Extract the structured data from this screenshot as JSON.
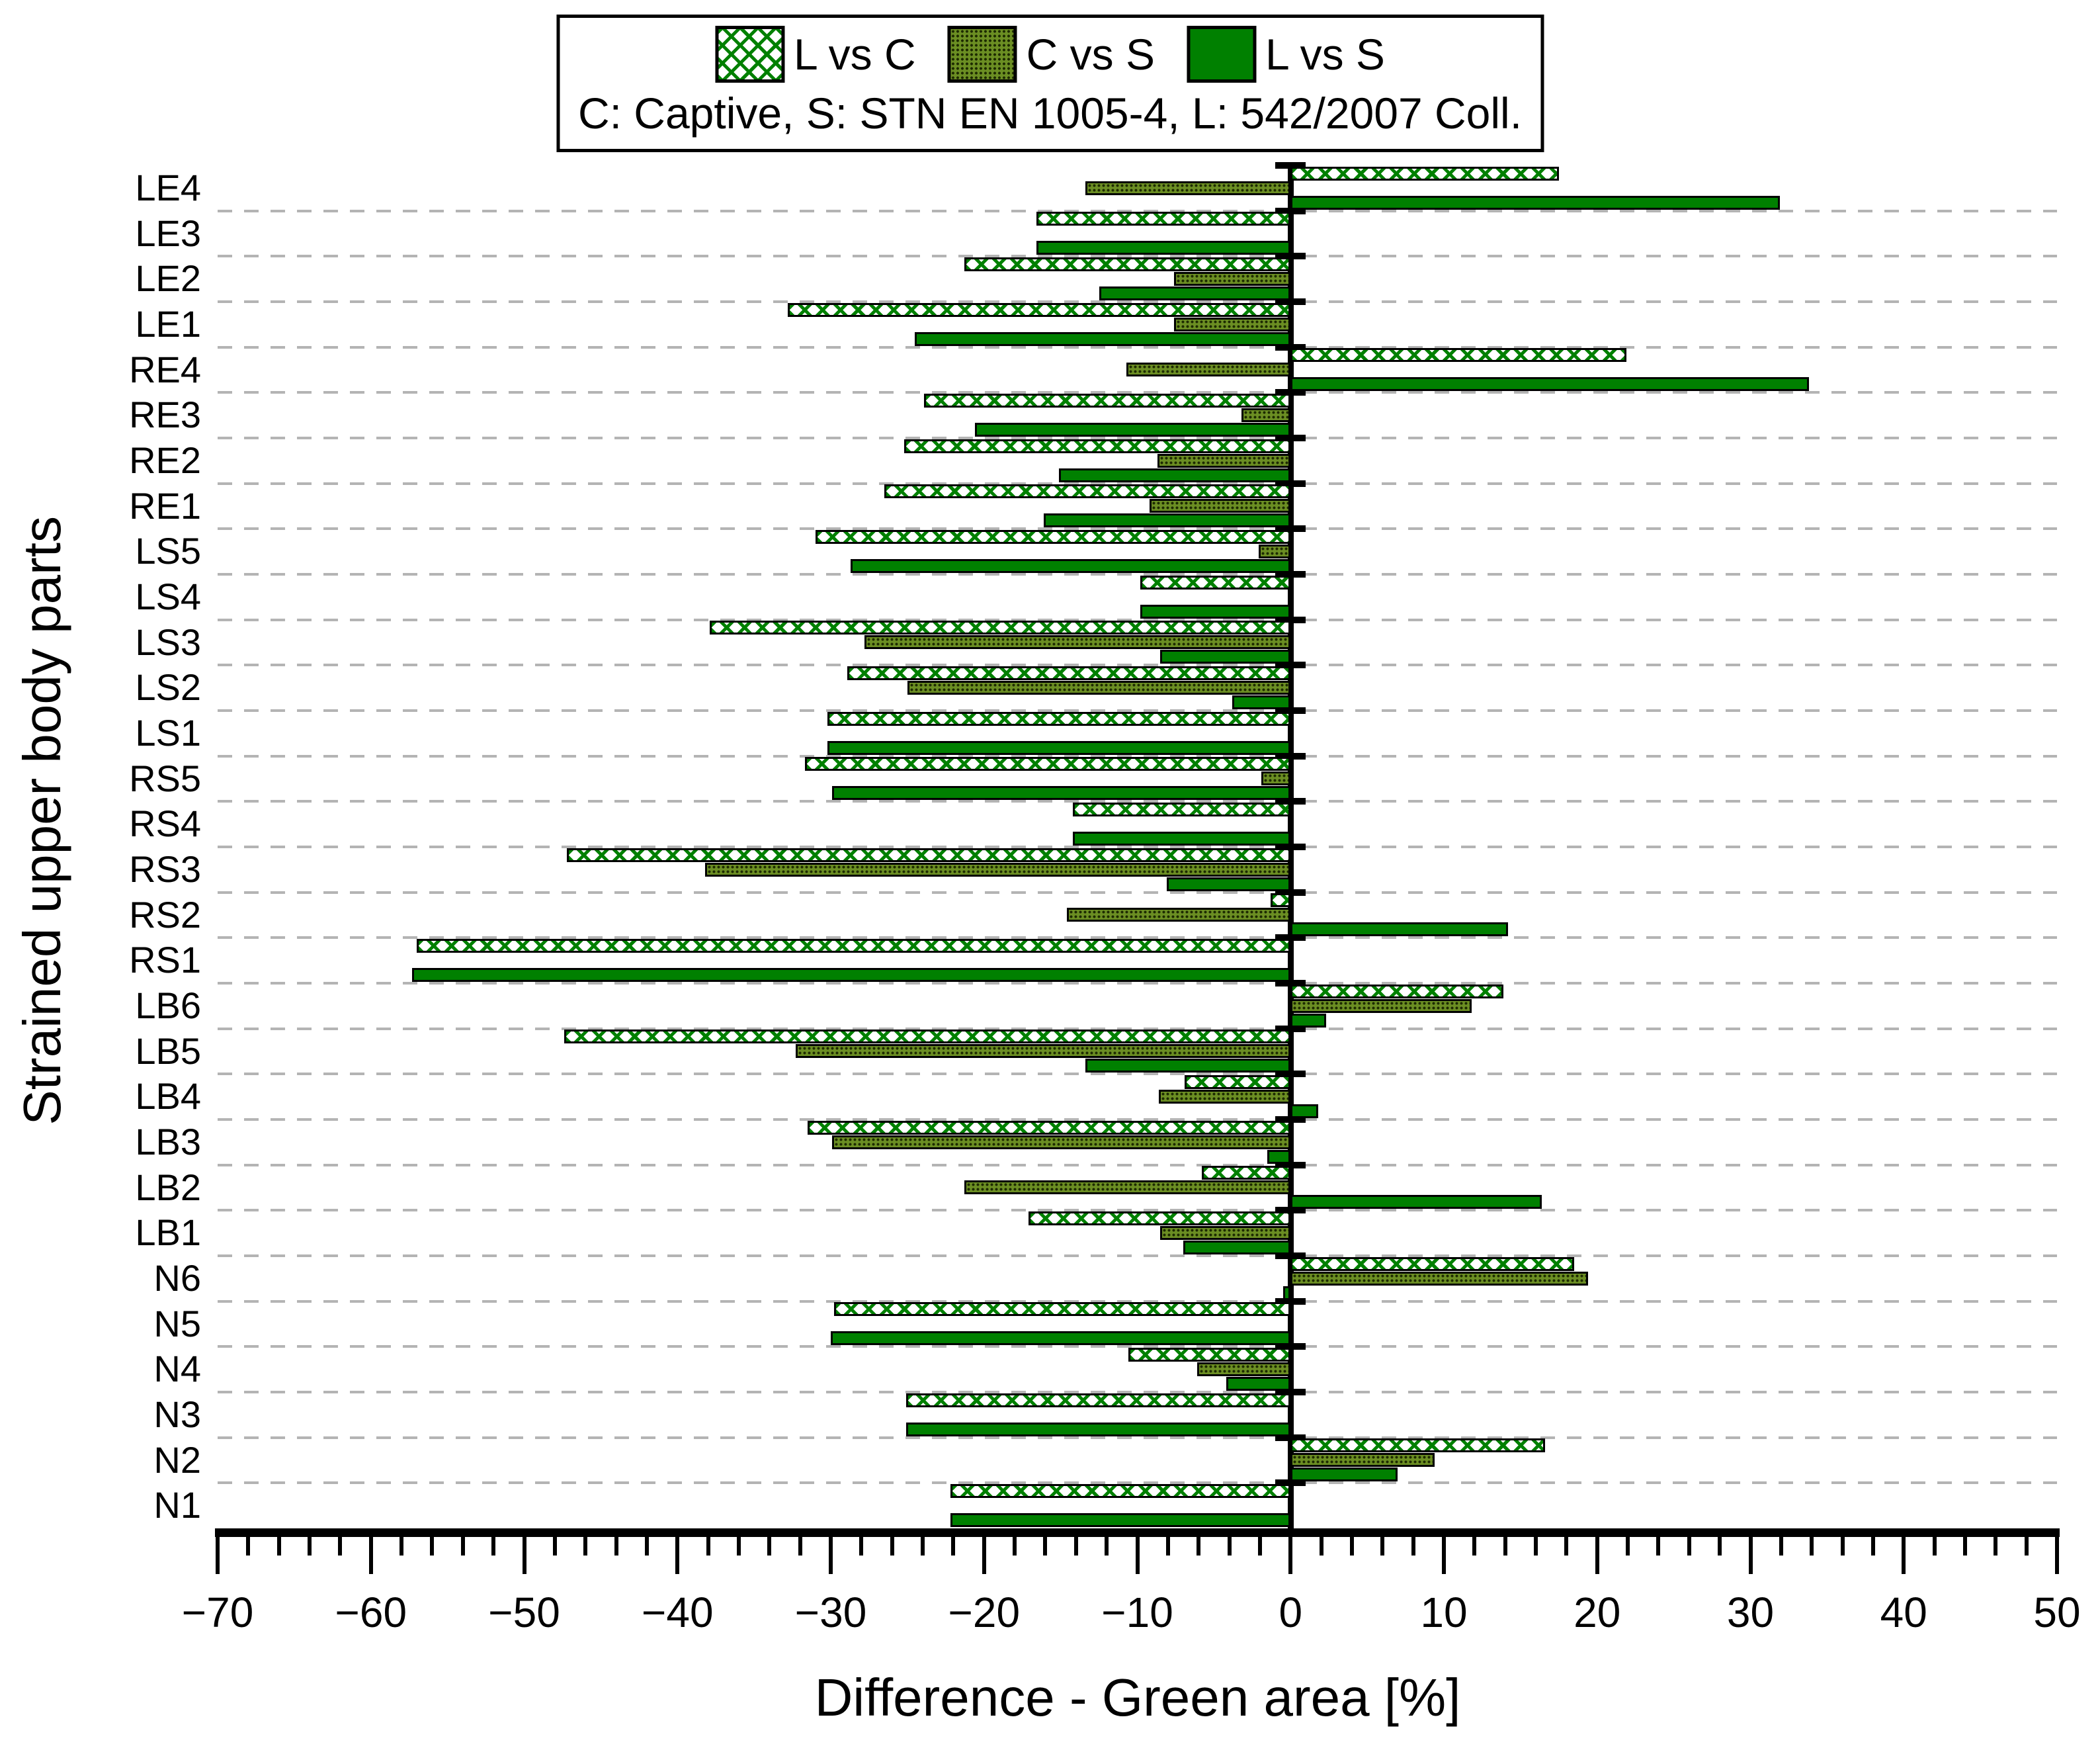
{
  "legend": {
    "series_labels": [
      "L vs C",
      "C vs S",
      "L vs S"
    ],
    "note": "C: Captive, S: STN EN 1005-4, L: 542/2007 Coll."
  },
  "axes": {
    "x_title": "Difference - Green area [%]",
    "y_title": "Strained upper body parts",
    "x_tick_labels": [
      "−70",
      "−60",
      "−50",
      "−40",
      "−30",
      "−20",
      "−10",
      "0",
      "10",
      "20",
      "30",
      "40",
      "50"
    ]
  },
  "chart_data": {
    "type": "bar",
    "orientation": "horizontal",
    "title": "",
    "xlabel": "Difference - Green area [%]",
    "ylabel": "Strained upper body parts",
    "xlim": [
      -70,
      50
    ],
    "x_major_step": 10,
    "x_minor_step": 2,
    "grid": "dashed gray horizontal lines at category boundaries",
    "legend_position": "top-center",
    "categories": [
      "LE4",
      "LE3",
      "LE2",
      "LE1",
      "RE4",
      "RE3",
      "RE2",
      "RE1",
      "LS5",
      "LS4",
      "LS3",
      "LS2",
      "LS1",
      "RS5",
      "RS4",
      "RS3",
      "RS2",
      "RS1",
      "LB6",
      "LB5",
      "LB4",
      "LB3",
      "LB2",
      "LB1",
      "N6",
      "N5",
      "N4",
      "N3",
      "N2",
      "N1"
    ],
    "series": [
      {
        "name": "L vs C",
        "style": "crosshatch",
        "values": [
          17.5,
          -16.6,
          -21.3,
          -32.8,
          21.9,
          -23.9,
          -25.2,
          -26.5,
          -31.0,
          -9.8,
          -37.9,
          -28.9,
          -30.2,
          -31.7,
          -14.2,
          -47.2,
          -1.3,
          -57.0,
          13.9,
          -47.4,
          -6.9,
          -31.5,
          -5.8,
          -17.1,
          18.5,
          -29.8,
          -10.6,
          -25.1,
          16.6,
          -22.2
        ]
      },
      {
        "name": "C vs S",
        "style": "dotted-olive",
        "values": [
          -13.4,
          0,
          -7.6,
          -7.6,
          -10.7,
          -3.2,
          -8.7,
          -9.2,
          -2.1,
          0,
          -27.8,
          -25.0,
          0,
          -1.9,
          0,
          -38.2,
          -14.6,
          0,
          11.8,
          -32.3,
          -8.6,
          -29.9,
          -21.3,
          -8.5,
          19.4,
          0,
          -6.1,
          0,
          9.4,
          0
        ]
      },
      {
        "name": "L vs S",
        "style": "solid-green",
        "values": [
          31.9,
          -16.6,
          -12.5,
          -24.5,
          33.8,
          -20.6,
          -15.1,
          -16.1,
          -28.7,
          -9.8,
          -8.5,
          -3.8,
          -30.2,
          -29.9,
          -14.2,
          -8.1,
          14.2,
          -57.3,
          2.3,
          -13.4,
          1.8,
          -1.5,
          16.4,
          -7.0,
          -0.5,
          -30.0,
          -4.2,
          -25.1,
          7.0,
          -22.2
        ]
      }
    ]
  },
  "colors": {
    "bar_green": "#008000",
    "bar_olive": "#6b8e23",
    "outline": "#000000",
    "gridline": "#b4b4b4",
    "background": "#ffffff"
  }
}
